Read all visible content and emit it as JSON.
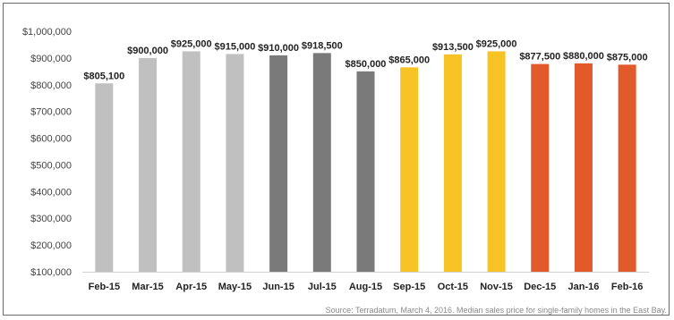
{
  "chart_data": {
    "type": "bar",
    "title": "",
    "xlabel": "",
    "ylabel": "",
    "ylim": [
      100000,
      1000000
    ],
    "yticks": [
      "$1,000,000",
      "$900,000",
      "$800,000",
      "$700,000",
      "$600,000",
      "$500,000",
      "$400,000",
      "$300,000",
      "$200,000",
      "$100,000"
    ],
    "categories": [
      "Feb-15",
      "Mar-15",
      "Apr-15",
      "May-15",
      "Jun-15",
      "Jul-15",
      "Aug-15",
      "Sep-15",
      "Oct-15",
      "Nov-15",
      "Dec-15",
      "Jan-16",
      "Feb-16"
    ],
    "values": [
      805100,
      900000,
      925000,
      915000,
      910000,
      918500,
      850000,
      865000,
      913500,
      925000,
      877500,
      880000,
      875000
    ],
    "labels": [
      "$805,100",
      "$900,000",
      "$925,000",
      "$915,000",
      "$910,000",
      "$918,500",
      "$850,000",
      "$865,000",
      "$913,500",
      "$925,000",
      "$877,500",
      "$880,000",
      "$875,000"
    ],
    "colors": [
      "#c0c0c0",
      "#c0c0c0",
      "#c0c0c0",
      "#c0c0c0",
      "#7a7a7a",
      "#7a7a7a",
      "#7a7a7a",
      "#f7c325",
      "#f7c325",
      "#f7c325",
      "#e25a2b",
      "#e25a2b",
      "#e25a2b"
    ],
    "grid": false,
    "legend": "none"
  },
  "source_note": "Source: Terradatum, March 4, 2016. Median sales price for single-family homes in the East Bay."
}
